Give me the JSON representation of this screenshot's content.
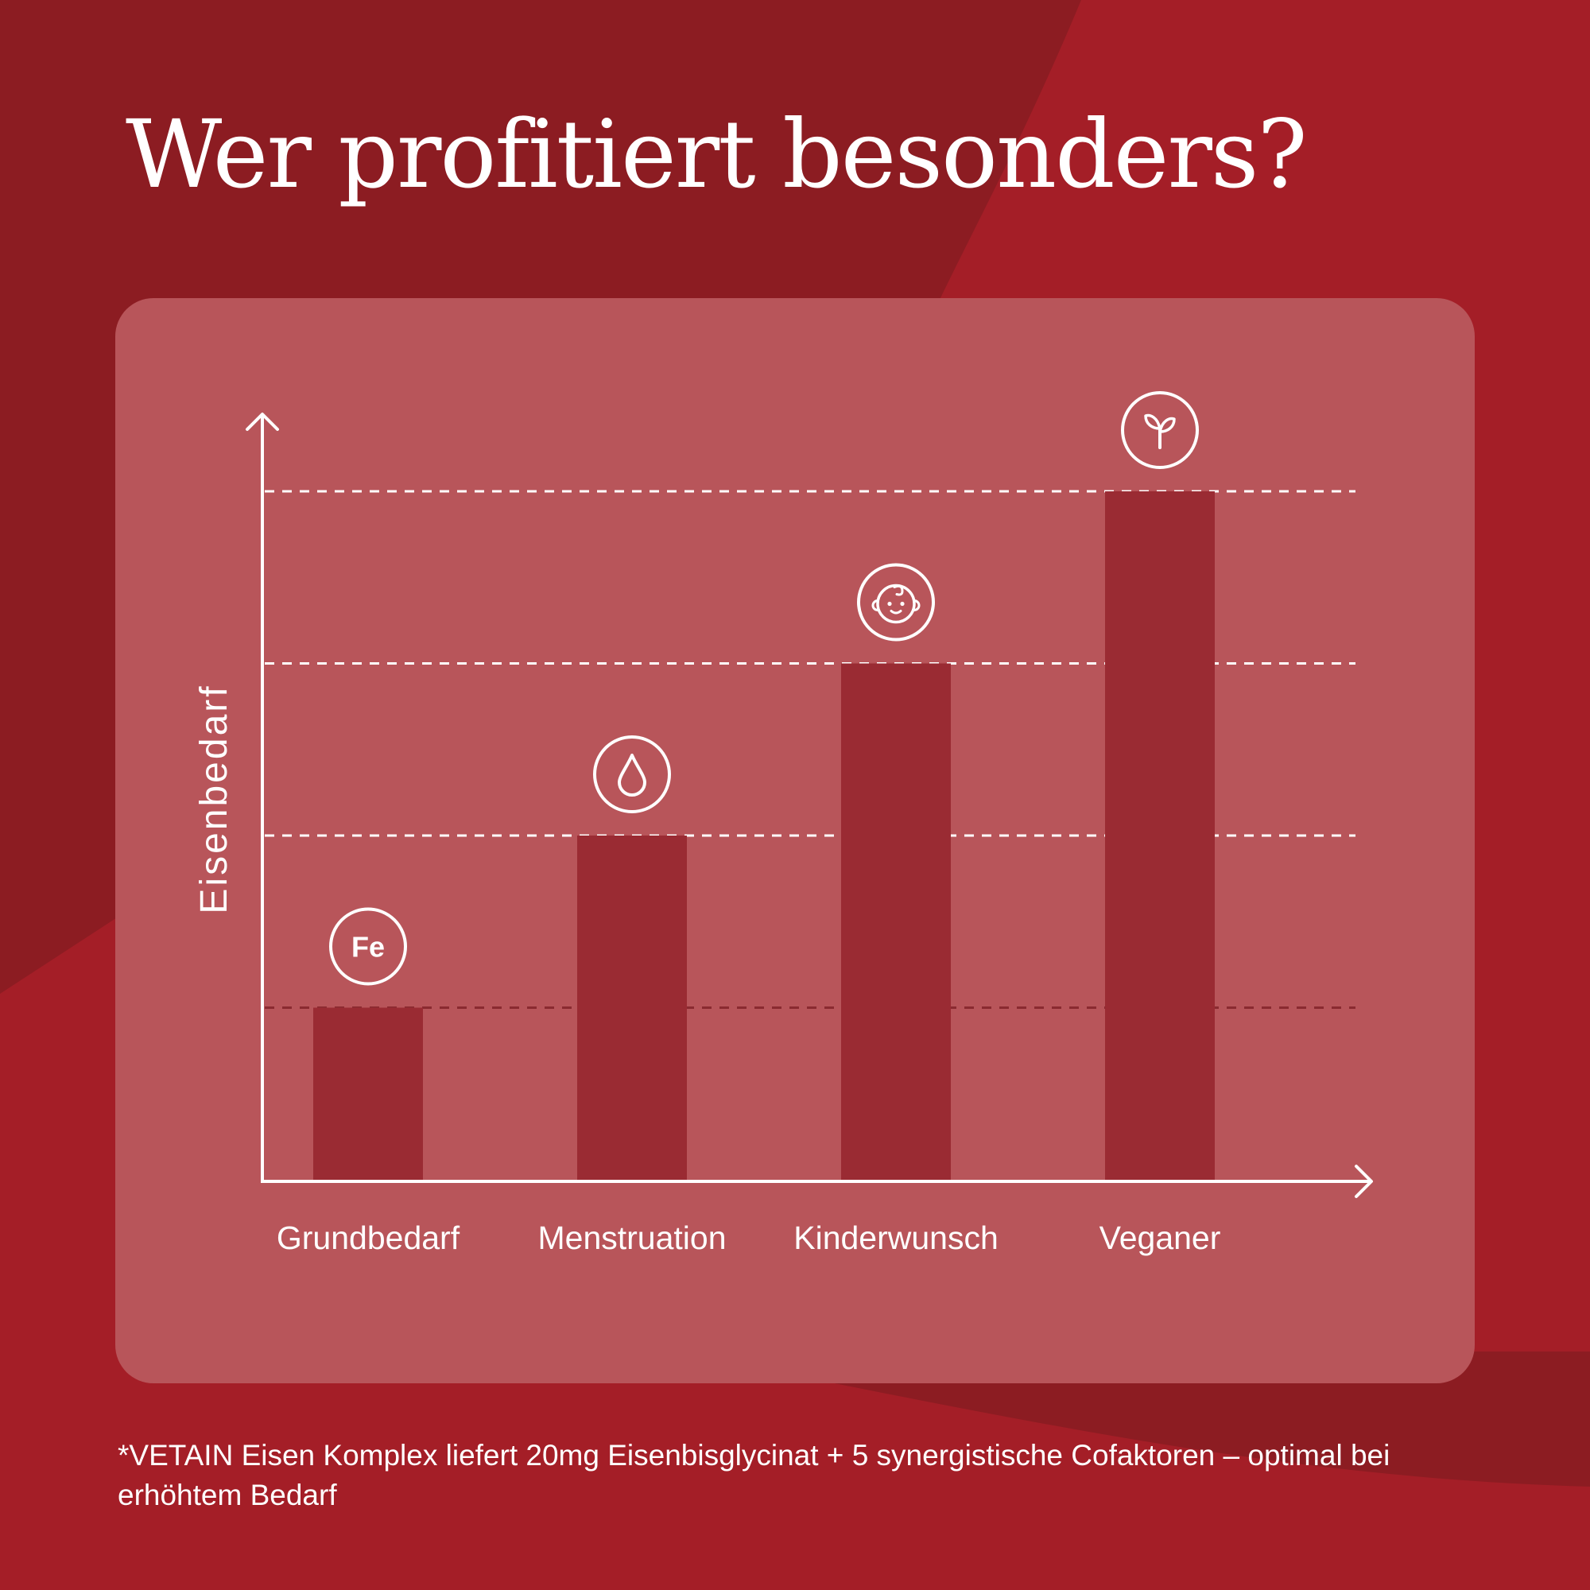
{
  "title": "Wer profitiert besonders?",
  "footnote": "*VETAIN Eisen Komplex liefert 20mg Eisenbisglycinat + 5 synergistische Cofaktoren – optimal bei erhöhtem Bedarf",
  "colors": {
    "background": "#a41e27",
    "background_dark": "#8c1c22",
    "panel": "#b8555a",
    "bar": "#9a2b33",
    "line": "#ffffff"
  },
  "chart_data": {
    "type": "bar",
    "categories": [
      "Grundbedarf",
      "Menstruation",
      "Kinderwunsch",
      "Veganer"
    ],
    "values": [
      1,
      2,
      3,
      4
    ],
    "icons": [
      "fe-icon",
      "drop-icon",
      "baby-icon",
      "sprout-icon"
    ],
    "icon_labels": [
      "Fe",
      "",
      "",
      ""
    ],
    "ylabel": "Eisenbedarf",
    "xlabel": "",
    "ylim": [
      0,
      4.5
    ],
    "grid": "dashed horizontal at each bar level",
    "legend": "none"
  }
}
